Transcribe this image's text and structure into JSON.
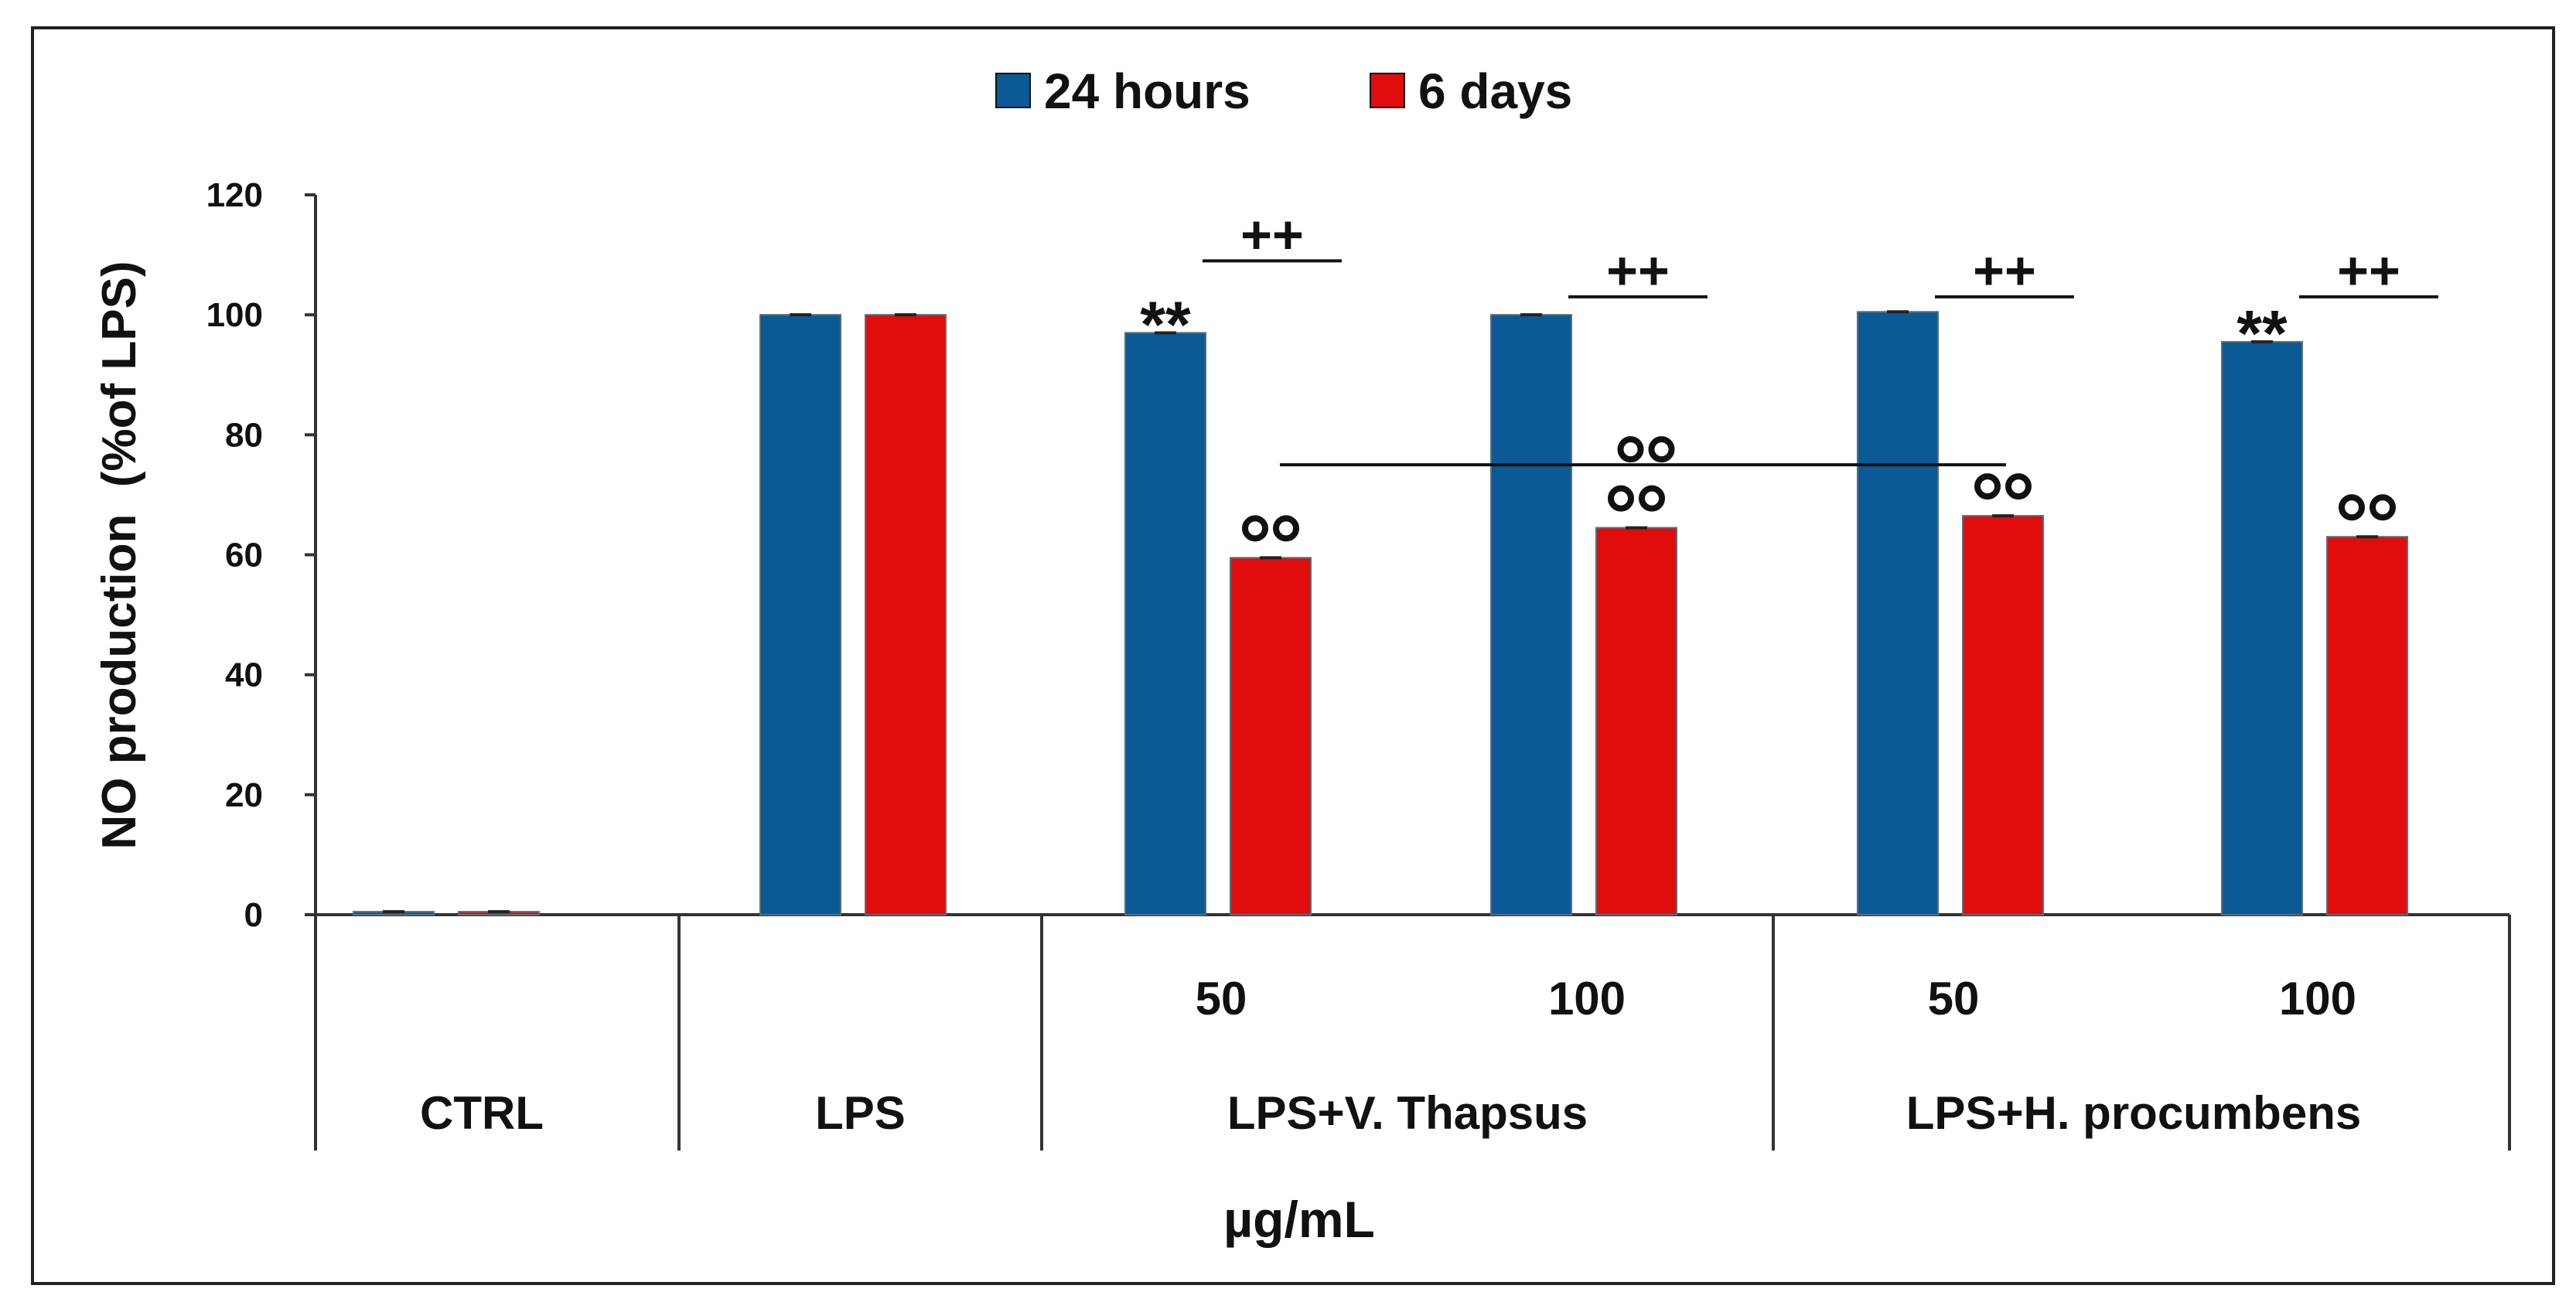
{
  "chart_data": {
    "type": "bar",
    "title": "",
    "ylabel": "NO production  (%of LPS)",
    "xlabel": "µg/mL",
    "ylim": [
      0,
      120
    ],
    "yticks": [
      0,
      20,
      40,
      60,
      80,
      100,
      120
    ],
    "legend_position": "top-center",
    "categories": [
      "CTRL",
      "LPS",
      "50",
      "100",
      "50",
      "100"
    ],
    "category_groups": [
      {
        "label": "CTRL",
        "members": [
          0
        ]
      },
      {
        "label": "LPS",
        "members": [
          1
        ]
      },
      {
        "label": "LPS+V. Thapsus",
        "members": [
          2,
          3
        ]
      },
      {
        "label": "LPS+H. procumbens",
        "members": [
          4,
          5
        ]
      }
    ],
    "dose_labels": [
      "",
      "",
      "50",
      "100",
      "50",
      "100"
    ],
    "series": [
      {
        "name": "24 hours",
        "color": "#0b5a96",
        "values": [
          0.5,
          100,
          97,
          100,
          100.5,
          95.5
        ]
      },
      {
        "name": "6 days",
        "color": "#e10c0c",
        "values": [
          0.5,
          100,
          59.5,
          64.5,
          66.5,
          63
        ]
      }
    ],
    "annotations": {
      "stars": [
        {
          "category": 2,
          "series": 0,
          "text": "**"
        },
        {
          "category": 5,
          "series": 0,
          "text": "**"
        }
      ],
      "plus_marks": [
        {
          "category": 2,
          "text": "++",
          "line_value": 109
        },
        {
          "category": 3,
          "text": "++",
          "line_value": 103
        },
        {
          "category": 4,
          "text": "++",
          "line_value": 103
        },
        {
          "category": 5,
          "text": "++",
          "line_value": 103
        }
      ],
      "circle_marks": [
        {
          "category": 2,
          "series": 1
        },
        {
          "category": 3,
          "series": 1
        },
        {
          "category": 4,
          "series": 1
        },
        {
          "category": 5,
          "series": 1
        }
      ],
      "comparison_line": {
        "from_category": 2,
        "to_category": 4,
        "value": 75,
        "mark": "circles"
      }
    }
  }
}
